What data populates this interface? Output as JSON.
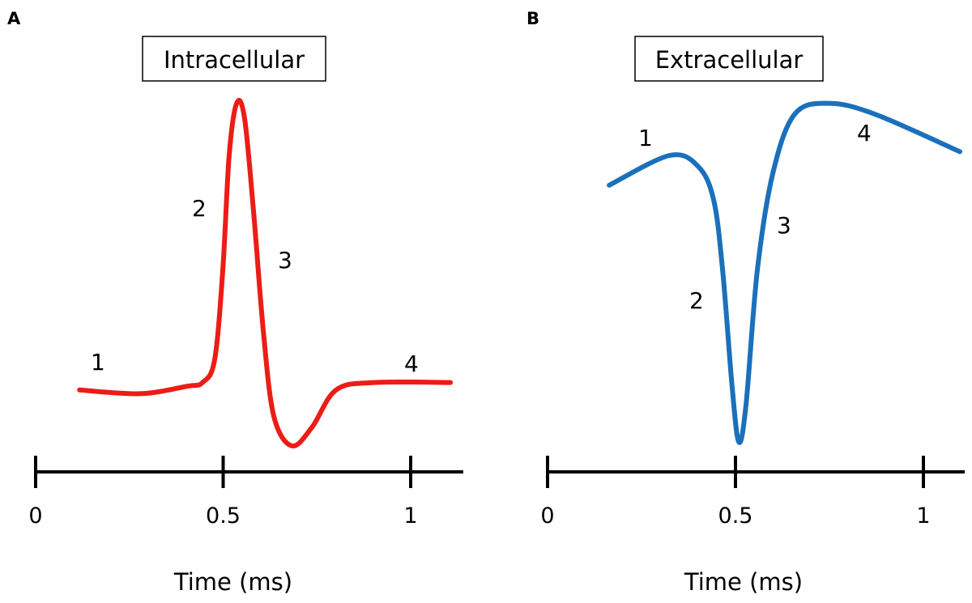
{
  "chart_data": [
    {
      "type": "line",
      "panel": "A",
      "title": "Intracellular",
      "xlabel": "Time (ms)",
      "ylabel": "",
      "xlim": [
        0,
        1.14
      ],
      "xticks": [
        "0",
        "0.5",
        "1"
      ],
      "xtick_values": [
        0,
        0.5,
        1
      ],
      "color": "#ec1c16",
      "grid": false,
      "annotations": [
        "1",
        "2",
        "3",
        "4"
      ],
      "series": [
        {
          "x": [
            0.117,
            0.279,
            0.404,
            0.445,
            0.477,
            0.499,
            0.516,
            0.536,
            0.557,
            0.581,
            0.607,
            0.635,
            0.683,
            0.737,
            0.801,
            0.903,
            1.106
          ],
          "y": [
            0.22,
            0.21,
            0.23,
            0.24,
            0.3,
            0.54,
            0.85,
            0.99,
            0.95,
            0.7,
            0.38,
            0.15,
            0.07,
            0.12,
            0.22,
            0.24,
            0.24
          ]
        }
      ]
    },
    {
      "type": "line",
      "panel": "B",
      "title": "Extracellular",
      "xlabel": "Time (ms)",
      "ylabel": "",
      "xlim": [
        0,
        1.11
      ],
      "xticks": [
        "0",
        "0.5",
        "1"
      ],
      "xtick_values": [
        0,
        0.5,
        1
      ],
      "color": "#1b70bb",
      "grid": false,
      "annotations": [
        "1",
        "2",
        "3",
        "4"
      ],
      "series": [
        {
          "x": [
            0.164,
            0.325,
            0.401,
            0.442,
            0.466,
            0.491,
            0.509,
            0.528,
            0.558,
            0.599,
            0.657,
            0.748,
            0.873,
            1.097
          ],
          "y": [
            0.77,
            0.85,
            0.82,
            0.73,
            0.54,
            0.23,
            0.08,
            0.18,
            0.54,
            0.8,
            0.96,
            0.99,
            0.96,
            0.86
          ]
        }
      ]
    }
  ]
}
